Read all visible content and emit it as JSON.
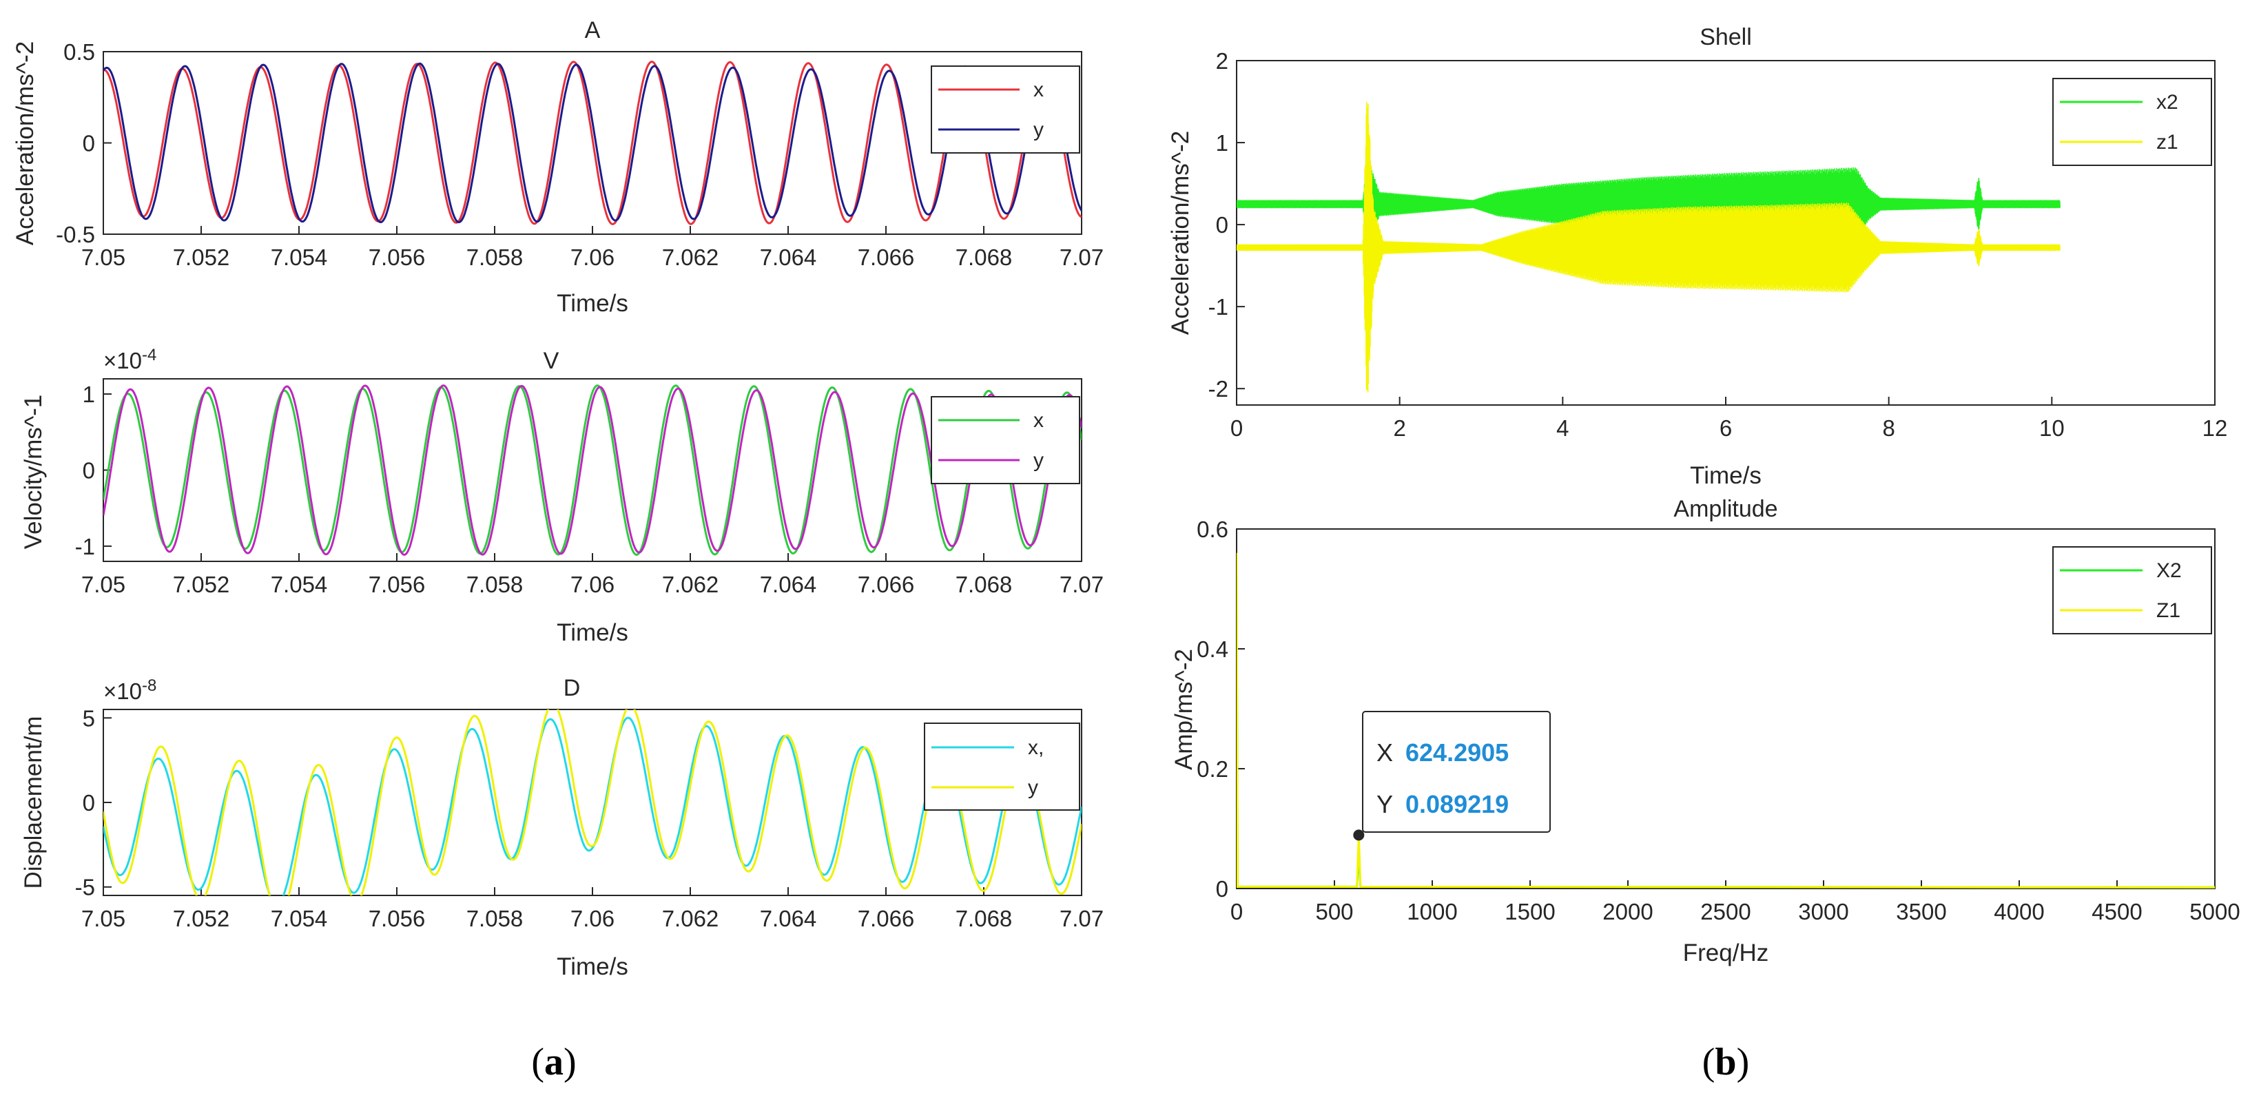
{
  "captions": {
    "a": "(a)",
    "b": "(b)"
  },
  "chart_data": [
    {
      "id": "A",
      "type": "line",
      "title": "A",
      "xlabel": "Time/s",
      "ylabel": "Acceleration/ms^-2",
      "xlim": [
        7.05,
        7.07
      ],
      "ylim": [
        -0.5,
        0.5
      ],
      "xticks": [
        7.05,
        7.052,
        7.054,
        7.056,
        7.058,
        7.06,
        7.062,
        7.064,
        7.066,
        7.068,
        7.07
      ],
      "xtick_labels": [
        "7.05",
        "7.052",
        "7.054",
        "7.056",
        "7.058",
        "7.06",
        "7.062",
        "7.064",
        "7.066",
        "7.068",
        "7.07"
      ],
      "yticks": [
        -0.5,
        0,
        0.5
      ],
      "ytick_labels": [
        "-0.5",
        "0",
        "0.5"
      ],
      "exponent_label": "",
      "legend_position": "top-right",
      "series": [
        {
          "name": "x",
          "color": "#e8323c",
          "amplitude": 0.42,
          "frequency_hz": 625,
          "phase": 1.52
        },
        {
          "name": "y",
          "color": "#1c1c8c",
          "amplitude": 0.41,
          "frequency_hz": 625,
          "phase": 1.3
        }
      ]
    },
    {
      "id": "V",
      "type": "line",
      "title": "V",
      "xlabel": "Time/s",
      "ylabel": "Velocity/ms^-1",
      "xlim": [
        7.05,
        7.07
      ],
      "ylim": [
        -1.2,
        1.2
      ],
      "xticks": [
        7.05,
        7.052,
        7.054,
        7.056,
        7.058,
        7.06,
        7.062,
        7.064,
        7.066,
        7.068,
        7.07
      ],
      "xtick_labels": [
        "7.05",
        "7.052",
        "7.054",
        "7.056",
        "7.058",
        "7.06",
        "7.062",
        "7.064",
        "7.066",
        "7.068",
        "7.07"
      ],
      "yticks": [
        -1,
        0,
        1
      ],
      "ytick_labels": [
        "-1",
        "0",
        "1"
      ],
      "exponent_label": "×10^-4",
      "legend_position": "top-right",
      "series": [
        {
          "name": "x",
          "color": "#2ecc40",
          "amplitude": 1.05,
          "frequency_hz": 625,
          "phase": -0.4
        },
        {
          "name": "y",
          "color": "#c026c0",
          "amplitude": 1.05,
          "frequency_hz": 625,
          "phase": -0.6
        }
      ]
    },
    {
      "id": "D",
      "type": "line",
      "title": "D",
      "xlabel": "Time/s",
      "ylabel": "Displacement/m",
      "xlim": [
        7.05,
        7.07
      ],
      "ylim": [
        -5.5,
        5.5
      ],
      "xticks": [
        7.05,
        7.052,
        7.054,
        7.056,
        7.058,
        7.06,
        7.062,
        7.064,
        7.066,
        7.068,
        7.07
      ],
      "xtick_labels": [
        "7.05",
        "7.052",
        "7.054",
        "7.056",
        "7.058",
        "7.06",
        "7.062",
        "7.064",
        "7.066",
        "7.068",
        "7.07"
      ],
      "yticks": [
        -5,
        0,
        5
      ],
      "ytick_labels": [
        "-5",
        "0",
        "5"
      ],
      "exponent_label": "×10^-8",
      "legend_position": "top-right",
      "series": [
        {
          "name": "x,",
          "color": "#22d8e8",
          "amplitude": 3.8,
          "frequency_hz": 625,
          "phase": 3.4,
          "offset_env": [
            [
              7.05,
              -0.5
            ],
            [
              7.054,
              -2.5
            ],
            [
              7.057,
              0.2
            ],
            [
              7.06,
              1.2
            ],
            [
              7.063,
              0.3
            ],
            [
              7.066,
              -0.8
            ],
            [
              7.07,
              -1.2
            ]
          ]
        },
        {
          "name": "y",
          "color": "#f0f000",
          "amplitude": 4.2,
          "frequency_hz": 625,
          "phase": 3.2,
          "offset_env": [
            [
              7.05,
              -0.3
            ],
            [
              7.054,
              -2.6
            ],
            [
              7.057,
              0.4
            ],
            [
              7.06,
              1.8
            ],
            [
              7.063,
              0.2
            ],
            [
              7.066,
              -1.0
            ],
            [
              7.07,
              -1.5
            ]
          ]
        }
      ]
    },
    {
      "id": "Shell",
      "type": "line",
      "title": "Shell",
      "xlabel": "Time/s",
      "ylabel": "Acceleration/ms^-2",
      "xlim": [
        0,
        12
      ],
      "ylim": [
        -2.2,
        2
      ],
      "xticks": [
        0,
        2,
        4,
        6,
        8,
        10,
        12
      ],
      "xtick_labels": [
        "0",
        "2",
        "4",
        "6",
        "8",
        "10",
        "12"
      ],
      "yticks": [
        -2,
        -1,
        0,
        1,
        2
      ],
      "ytick_labels": [
        "-2",
        "-1",
        "0",
        "1",
        "2"
      ],
      "legend_position": "top-right",
      "series": [
        {
          "name": "x2",
          "color": "#22ee22",
          "baseline": 0.25,
          "envelope": [
            [
              0,
              0.05
            ],
            [
              1.55,
              0.05
            ],
            [
              1.6,
              0.6
            ],
            [
              1.75,
              0.15
            ],
            [
              2.9,
              0.05
            ],
            [
              3.2,
              0.15
            ],
            [
              4,
              0.25
            ],
            [
              5,
              0.33
            ],
            [
              6,
              0.38
            ],
            [
              7,
              0.42
            ],
            [
              7.6,
              0.45
            ],
            [
              7.75,
              0.2
            ],
            [
              7.9,
              0.08
            ],
            [
              9.05,
              0.05
            ],
            [
              9.1,
              0.35
            ],
            [
              9.15,
              0.05
            ],
            [
              10.1,
              0.05
            ]
          ],
          "end": 10.1
        },
        {
          "name": "z1",
          "color": "#f5f500",
          "baseline": -0.28,
          "envelope": [
            [
              0,
              0.04
            ],
            [
              1.55,
              0.04
            ],
            [
              1.6,
              2.0
            ],
            [
              1.68,
              0.5
            ],
            [
              1.8,
              0.08
            ],
            [
              3.0,
              0.04
            ],
            [
              3.5,
              0.2
            ],
            [
              4.5,
              0.45
            ],
            [
              5.5,
              0.5
            ],
            [
              6.5,
              0.52
            ],
            [
              7.5,
              0.55
            ],
            [
              7.7,
              0.3
            ],
            [
              7.9,
              0.08
            ],
            [
              9.05,
              0.04
            ],
            [
              9.1,
              0.25
            ],
            [
              9.15,
              0.04
            ],
            [
              10.1,
              0.04
            ]
          ],
          "end": 10.1
        }
      ]
    },
    {
      "id": "Amplitude",
      "type": "line",
      "title": "Amplitude",
      "xlabel": "Freq/Hz",
      "ylabel": "Amp/ms^-2",
      "xlim": [
        0,
        5000
      ],
      "ylim": [
        0,
        0.6
      ],
      "xticks": [
        0,
        500,
        1000,
        1500,
        2000,
        2500,
        3000,
        3500,
        4000,
        4500,
        5000
      ],
      "xtick_labels": [
        "0",
        "500",
        "1000",
        "1500",
        "2000",
        "2500",
        "3000",
        "3500",
        "4000",
        "4500",
        "5000"
      ],
      "yticks": [
        0,
        0.2,
        0.4,
        0.6
      ],
      "ytick_labels": [
        "0",
        "0.2",
        "0.4",
        "0.6"
      ],
      "legend_position": "top-right",
      "series": [
        {
          "name": "X2",
          "color": "#22ee22",
          "points": [
            [
              0,
              0.56
            ],
            [
              5,
              0.003
            ],
            [
              615,
              0.003
            ],
            [
              624.29,
              0.06
            ],
            [
              633,
              0.003
            ],
            [
              5000,
              0.002
            ]
          ]
        },
        {
          "name": "Z1",
          "color": "#f5f500",
          "points": [
            [
              0,
              0.56
            ],
            [
              5,
              0.003
            ],
            [
              615,
              0.003
            ],
            [
              624.29,
              0.089219
            ],
            [
              633,
              0.003
            ],
            [
              5000,
              0.002
            ]
          ]
        }
      ],
      "datatip": {
        "x_label": "X",
        "x_value": "624.2905",
        "y_label": "Y",
        "y_value": "0.089219",
        "x": 624.2905,
        "y": 0.089219
      }
    }
  ]
}
